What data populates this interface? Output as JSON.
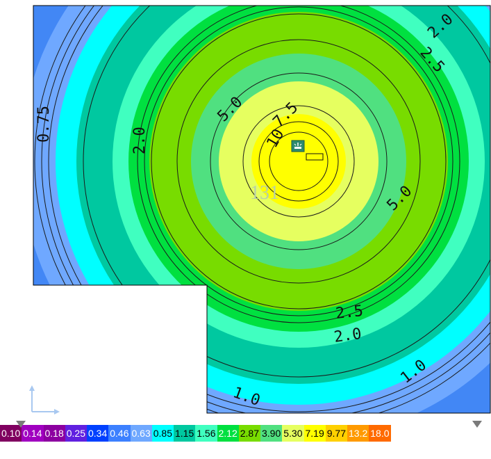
{
  "plot": {
    "center_value": "131",
    "contour_labels": [
      "0.75",
      "1.0",
      "1.0",
      "2.0",
      "2.0",
      "2.0",
      "2.5",
      "2.5",
      "5.0",
      "5.0",
      "7.5",
      "10"
    ],
    "colors": {
      "blue": "#4287f5",
      "lightblue": "#6fa8ff",
      "cyan": "#00ffff",
      "teal": "#00c8a0",
      "aqua": "#40ffc0",
      "green": "#00e040",
      "lime": "#78dc00",
      "mint": "#50e080",
      "paleyellow": "#e6ff60",
      "yellow": "#ffff00"
    }
  },
  "legend": {
    "items": [
      {
        "label": "0.10",
        "bg": "#800060",
        "fg": "#ffffff"
      },
      {
        "label": "0.14",
        "bg": "#a000c0",
        "fg": "#ffffff"
      },
      {
        "label": "0.18",
        "bg": "#8c00a0",
        "fg": "#ffffff"
      },
      {
        "label": "0.25",
        "bg": "#6020e0",
        "fg": "#ffffff"
      },
      {
        "label": "0.34",
        "bg": "#0040ff",
        "fg": "#ffffff"
      },
      {
        "label": "0.46",
        "bg": "#3c80ff",
        "fg": "#ffffff"
      },
      {
        "label": "0.63",
        "bg": "#6fa8ff",
        "fg": "#ffffff"
      },
      {
        "label": "0.85",
        "bg": "#00ffff",
        "fg": "#000000"
      },
      {
        "label": "1.15",
        "bg": "#00c8a0",
        "fg": "#000000"
      },
      {
        "label": "1.56",
        "bg": "#40ffc0",
        "fg": "#000000"
      },
      {
        "label": "2.12",
        "bg": "#00e040",
        "fg": "#ffffff"
      },
      {
        "label": "2.87",
        "bg": "#78dc00",
        "fg": "#000000"
      },
      {
        "label": "3.90",
        "bg": "#50e080",
        "fg": "#000000"
      },
      {
        "label": "5.30",
        "bg": "#e6ff60",
        "fg": "#000000"
      },
      {
        "label": "7.19",
        "bg": "#ffff00",
        "fg": "#000000"
      },
      {
        "label": "9.77",
        "bg": "#ffd000",
        "fg": "#000000"
      },
      {
        "label": "13.2",
        "bg": "#ff9a00",
        "fg": "#ffffff"
      },
      {
        "label": "18.0",
        "bg": "#ff6a00",
        "fg": "#ffffff"
      }
    ]
  }
}
